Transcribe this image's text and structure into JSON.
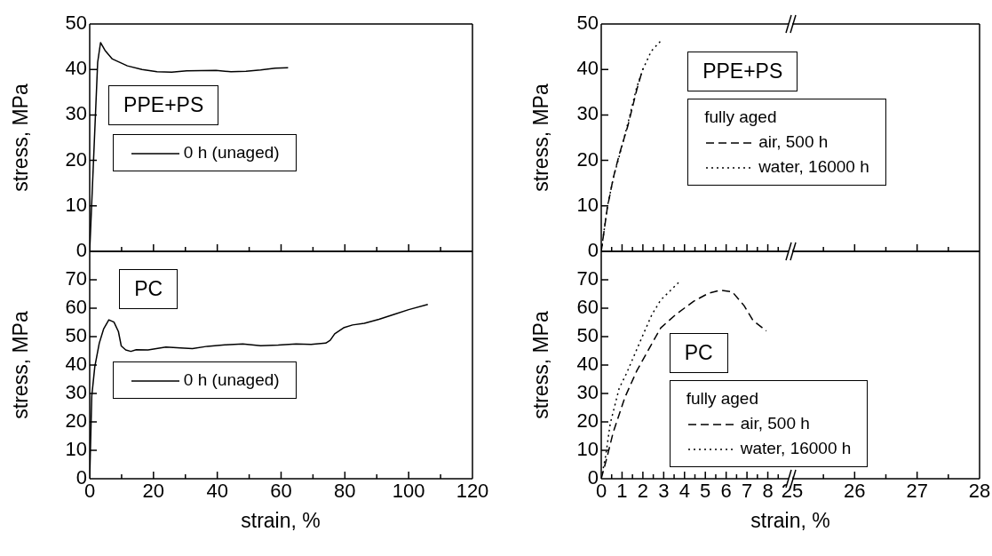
{
  "chart_data": [
    {
      "type": "line",
      "ylabel": "stress, MPa",
      "annotations": [
        "PPE+PS"
      ],
      "legend": "left",
      "xlim": [
        0,
        120
      ],
      "xticks": [
        0,
        {
          "value": 10,
          "label": null
        },
        20,
        {
          "value": 30,
          "label": null
        },
        40,
        {
          "value": 50,
          "label": null
        },
        60,
        {
          "value": 70,
          "label": null
        },
        80,
        {
          "value": 90,
          "label": null
        },
        100,
        {
          "value": 110,
          "label": null
        },
        120
      ],
      "ylim": [
        0,
        50
      ],
      "yticks": [
        0,
        10,
        20,
        30,
        40,
        50
      ],
      "tick_labels": "y",
      "series": [
        {
          "name": "0 h (unaged)",
          "color": "#000000",
          "line_style": "solid",
          "x": [
            0,
            2.5,
            3.4,
            4.8,
            7.1,
            11.8,
            16.4,
            21.1,
            25.7,
            30.4,
            39.6,
            44.3,
            49,
            53.6,
            58.2,
            62.2
          ],
          "values": [
            0,
            41.6,
            45.9,
            44.2,
            42.3,
            40.8,
            40,
            39.5,
            39.4,
            39.7,
            39.8,
            39.5,
            39.6,
            39.9,
            40.3,
            40.4
          ]
        }
      ]
    },
    {
      "type": "line",
      "ylabel": "stress, MPa",
      "annotations": [
        "PPE+PS"
      ],
      "legend": "center",
      "legend_title": "fully aged",
      "xlim": [
        0,
        9
      ],
      "xticks": [
        0,
        {
          "value": 0.5,
          "label": null
        },
        1,
        {
          "value": 1.5,
          "label": null
        },
        2,
        {
          "value": 2.5,
          "label": null
        },
        3,
        {
          "value": 3.5,
          "label": null
        },
        4,
        {
          "value": 4.5,
          "label": null
        },
        5,
        {
          "value": 5.5,
          "label": null
        },
        6,
        {
          "value": 6.5,
          "label": null
        },
        7,
        {
          "value": 7.5,
          "label": null
        },
        8,
        {
          "value": 8.5,
          "label": null
        }
      ],
      "ylim": [
        0,
        50
      ],
      "yticks": [
        0,
        10,
        20,
        30,
        40,
        50
      ],
      "tick_labels": "y",
      "series": [
        {
          "name": "air, 500 h",
          "color": "#000000",
          "line_style": "dashed",
          "x": [
            0,
            0.29,
            0.57,
            0.86,
            1.29,
            1.71,
            2
          ],
          "values": [
            0,
            9.5,
            16,
            21.2,
            27.8,
            35.6,
            40.2
          ]
        },
        {
          "name": "water, 16000 h",
          "color": "#000000",
          "line_style": "dotted",
          "x": [
            0,
            0.3,
            0.6,
            0.9,
            1.3,
            1.7,
            2,
            2.4,
            2.9
          ],
          "values": [
            0,
            10,
            16.5,
            21.5,
            28.5,
            36,
            40,
            44,
            46.5
          ]
        }
      ]
    },
    {
      "type": "line",
      "xlim": [
        25,
        28
      ],
      "xticks": [
        25,
        {
          "value": 25.5,
          "label": null
        },
        26,
        {
          "value": 26.5,
          "label": null
        },
        27,
        {
          "value": 27.5,
          "label": null
        },
        28
      ],
      "ylim": [
        0,
        50
      ],
      "tick_labels": false
    },
    {
      "type": "line",
      "xlabel": "strain, %",
      "ylabel": "stress, MPa",
      "annotations": [
        "PC"
      ],
      "legend": "left",
      "xlim": [
        0,
        120
      ],
      "xticks": [
        0,
        {
          "value": 10,
          "label": null
        },
        20,
        {
          "value": 30,
          "label": null
        },
        40,
        {
          "value": 50,
          "label": null
        },
        60,
        {
          "value": 70,
          "label": null
        },
        80,
        {
          "value": 90,
          "label": null
        },
        100,
        {
          "value": 110,
          "label": null
        },
        120
      ],
      "ylim": [
        0,
        80
      ],
      "yticks": [
        0,
        10,
        20,
        30,
        40,
        50,
        60,
        70
      ],
      "series": [
        {
          "name": "0 h (unaged)",
          "color": "#000000",
          "line_style": "solid",
          "x": [
            0,
            0.65,
            1.6,
            3,
            4.4,
            6,
            7.6,
            9,
            9.9,
            11.3,
            12.9,
            14.6,
            18.3,
            23.9,
            28.5,
            32.2,
            36.9,
            42.4,
            48,
            53.6,
            59.1,
            64.7,
            69.4,
            74,
            75.4,
            76.8,
            79.6,
            82.4,
            86.1,
            90.7,
            95.4,
            100,
            106
          ],
          "values": [
            0,
            29.1,
            39.4,
            47.7,
            52.8,
            55.9,
            55.1,
            51.8,
            46.7,
            45.3,
            44.8,
            45.4,
            45.3,
            46.3,
            46,
            45.8,
            46.6,
            47.1,
            47.4,
            46.8,
            47,
            47.4,
            47.3,
            47.7,
            48.7,
            51,
            53.1,
            54.1,
            54.7,
            56.1,
            57.8,
            59.5,
            61.3
          ]
        }
      ]
    },
    {
      "type": "line",
      "xlabel": "strain, %",
      "ylabel": "stress, MPa",
      "annotations": [
        "PC"
      ],
      "legend": "bottom",
      "legend_title": "fully aged",
      "xlim": [
        0,
        9
      ],
      "xticks": [
        0,
        {
          "value": 0.5,
          "label": null
        },
        1,
        {
          "value": 1.5,
          "label": null
        },
        2,
        {
          "value": 2.5,
          "label": null
        },
        3,
        {
          "value": 3.5,
          "label": null
        },
        4,
        {
          "value": 4.5,
          "label": null
        },
        5,
        {
          "value": 5.5,
          "label": null
        },
        6,
        {
          "value": 6.5,
          "label": null
        },
        7,
        {
          "value": 7.5,
          "label": null
        },
        8,
        {
          "value": 8.5,
          "label": null
        }
      ],
      "ylim": [
        0,
        80
      ],
      "yticks": [
        0,
        10,
        20,
        30,
        40,
        50,
        60,
        70
      ],
      "series": [
        {
          "name": "air, 500 h",
          "color": "#000000",
          "line_style": "dashed",
          "x": [
            0,
            0.29,
            0.57,
            1.14,
            1.71,
            2.5,
            2.86,
            3.57,
            4.43,
            5.14,
            5.71,
            6.29,
            6.86,
            7.29,
            7.93
          ],
          "values": [
            0,
            7.9,
            16.2,
            28.7,
            38,
            48.4,
            53.1,
            57.7,
            62.4,
            65.2,
            66.3,
            65.8,
            60.9,
            55.7,
            52
          ]
        },
        {
          "name": "water, 16000 h",
          "color": "#000000",
          "line_style": "dotted",
          "x": [
            0,
            0.21,
            0.43,
            0.86,
            1.21,
            2,
            2.43,
            2.86,
            3.71
          ],
          "values": [
            0,
            7.9,
            19.3,
            31.8,
            37,
            50.5,
            57.7,
            62.9,
            69
          ]
        }
      ]
    },
    {
      "type": "line",
      "xlim": [
        25,
        28
      ],
      "xticks": [
        25,
        {
          "value": 25.5,
          "label": null
        },
        26,
        {
          "value": 26.5,
          "label": null
        },
        27,
        {
          "value": 27.5,
          "label": null
        },
        28
      ],
      "ylim": [
        0,
        80
      ],
      "tick_labels": "x"
    }
  ]
}
